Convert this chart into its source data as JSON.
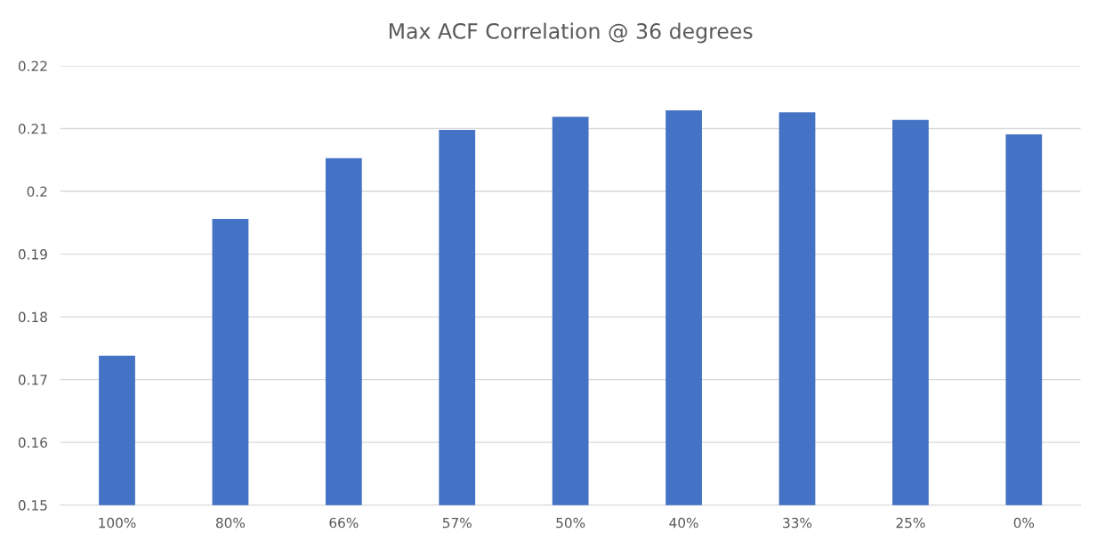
{
  "chart_data": {
    "type": "bar",
    "title": "Max ACF Correlation @ 36 degrees",
    "categories": [
      "100%",
      "80%",
      "66%",
      "57%",
      "50%",
      "40%",
      "33%",
      "25%",
      "0%"
    ],
    "values": [
      0.1738,
      0.1956,
      0.2053,
      0.2098,
      0.2119,
      0.2129,
      0.2126,
      0.2114,
      0.2091
    ],
    "color": "#4472c4",
    "ylim": [
      0.15,
      0.22
    ],
    "yticks": [
      0.15,
      0.16,
      0.17,
      0.18,
      0.19,
      0.2,
      0.21,
      0.22
    ],
    "grid": "y"
  }
}
